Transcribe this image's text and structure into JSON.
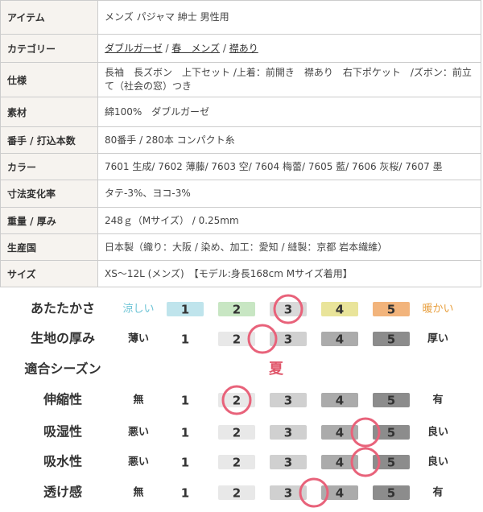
{
  "table": {
    "rows": [
      {
        "label": "アイテム",
        "value": "メンズ パジャマ 紳士 男性用"
      },
      {
        "label": "カテゴリー",
        "links": [
          "ダブルガーゼ",
          "春　メンズ",
          "襟あり"
        ],
        "separator": " / "
      },
      {
        "label": "仕様",
        "value": "長袖　長ズボン　上下セット /上着：前開き　襟あり　右下ポケット　/ズボン：前立て（社会の窓）つき"
      },
      {
        "label": "素材",
        "value": "綿100%　ダブルガーゼ"
      },
      {
        "label": "番手 / 打込本数",
        "value": "80番手 / 280本 コンパクト糸"
      },
      {
        "label": "カラー",
        "value": "7601 生成/ 7602 薄藤/ 7603 空/ 7604 梅蕾/ 7605 藍/ 7606 灰桜/ 7607 墨"
      },
      {
        "label": "寸法変化率",
        "value": "タテ-3%、ヨコ-3%"
      },
      {
        "label": "重量 / 厚み",
        "value": "248ｇ（Mサイズ） / 0.25mm"
      },
      {
        "label": "生産国",
        "value": "日本製（織り：大阪 / 染め、加工：愛知 / 縫製：京都 岩本繊維）"
      },
      {
        "label": "サイズ",
        "value": "XS～12L (メンズ)　【モデル:身長168cm Mサイズ着用】"
      }
    ]
  },
  "ratings": {
    "scale": [
      "1",
      "2",
      "3",
      "4",
      "5"
    ],
    "rows": [
      {
        "label": "あたたかさ",
        "low": "涼しい",
        "high": "暖かい",
        "level": 3
      },
      {
        "label": "生地の厚み",
        "low": "薄い",
        "high": "厚い",
        "level": 2.5
      },
      {
        "label": "伸縮性",
        "low": "無",
        "high": "有",
        "level": 2
      },
      {
        "label": "吸湿性",
        "low": "悪い",
        "high": "良い",
        "level": 4.5
      },
      {
        "label": "吸水性",
        "low": "悪い",
        "high": "良い",
        "level": 4.5
      },
      {
        "label": "透け感",
        "low": "無",
        "high": "有",
        "level": 3.5
      }
    ],
    "season": {
      "label": "適合シーズン",
      "value": "夏"
    }
  }
}
